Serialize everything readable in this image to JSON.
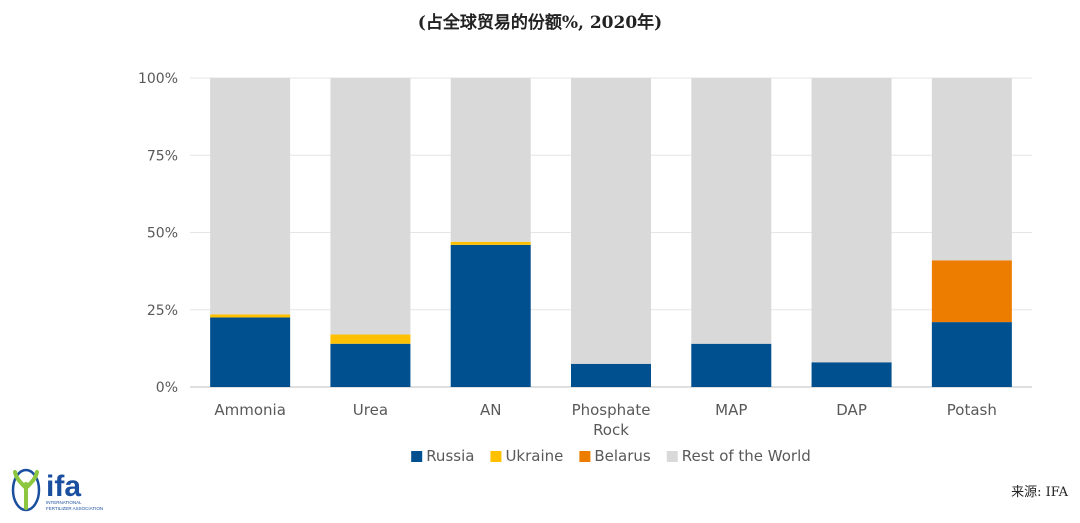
{
  "subtitle": "(占全球贸易的份额%, 2020年)",
  "source": "来源: IFA",
  "logo": {
    "text": "ifa",
    "tagline_line1": "INTERNATIONAL",
    "tagline_line2": "FERTILIZER ASSOCIATION"
  },
  "colors": {
    "Russia": "#004f8f",
    "Ukraine": "#ffc000",
    "Belarus": "#ed7d00",
    "Rest of the World": "#d9d9d9"
  },
  "chart_data": {
    "type": "bar",
    "stacked": true,
    "categories": [
      [
        "Ammonia"
      ],
      [
        "Urea"
      ],
      [
        "AN"
      ],
      [
        "Phosphate",
        "Rock"
      ],
      [
        "MAP"
      ],
      [
        "DAP"
      ],
      [
        "Potash"
      ]
    ],
    "series": [
      {
        "name": "Russia",
        "values": [
          22.5,
          14,
          46,
          7.5,
          14,
          8,
          21
        ]
      },
      {
        "name": "Ukraine",
        "values": [
          1,
          3,
          1,
          0,
          0,
          0,
          0
        ]
      },
      {
        "name": "Belarus",
        "values": [
          0,
          0,
          0,
          0,
          0,
          0,
          20
        ]
      },
      {
        "name": "Rest of the World",
        "values": [
          76.5,
          83,
          53,
          92.5,
          86,
          92,
          59
        ]
      }
    ],
    "ylim": [
      0,
      100
    ],
    "yticks": [
      0,
      25,
      50,
      75,
      100
    ],
    "ytick_labels": [
      "0%",
      "25%",
      "50%",
      "75%",
      "100%"
    ],
    "grid": true,
    "legend_position": "bottom"
  }
}
